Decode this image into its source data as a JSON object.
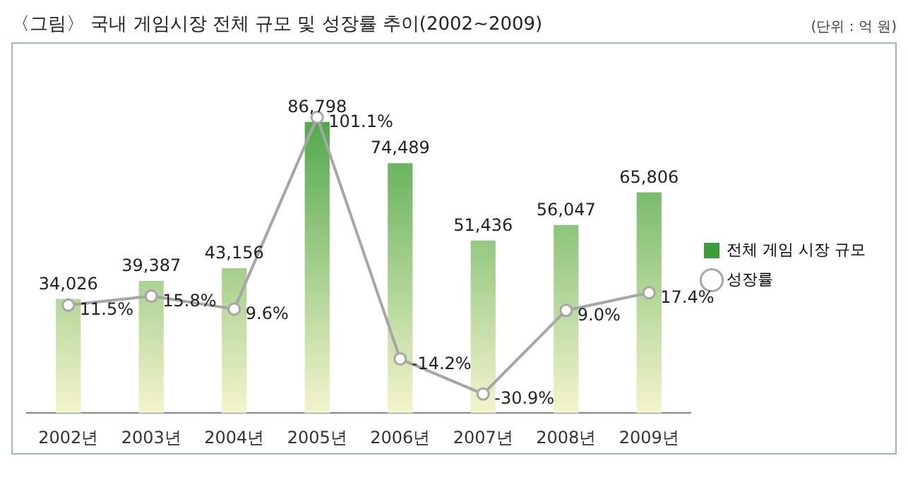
{
  "chart_data": {
    "type": "bar",
    "title": "〈그림〉 국내 게임시장 전체 규모 및 성장률 추이(2002~2009)",
    "annotations": [
      "(단위 : 억 원)"
    ],
    "categories": [
      "2002년",
      "2003년",
      "2004년",
      "2005년",
      "2006년",
      "2007년",
      "2008년",
      "2009년"
    ],
    "series": [
      {
        "name": "전체 게임 시장 규모",
        "color": "#3a9e3a",
        "values": [
          34026,
          39387,
          43156,
          86798,
          74489,
          51436,
          56047,
          65806
        ],
        "value_labels": [
          "34,026",
          "39,387",
          "43,156",
          "86,798",
          "74,489",
          "51,436",
          "56,047",
          "65,806"
        ]
      },
      {
        "name": "성장률",
        "type": "line",
        "axis": "y2",
        "color": "#a6a6a6",
        "marker": "circle",
        "values": [
          11.5,
          15.8,
          9.6,
          101.1,
          -14.2,
          -30.9,
          9.0,
          17.4
        ],
        "value_labels": [
          "11.5%",
          "15.8%",
          "9.6%",
          "101.1%",
          "-14.2%",
          "-30.9%",
          "9.0%",
          "17.4%"
        ]
      }
    ],
    "tick_labels": "x",
    "grid": false,
    "legend": "right"
  }
}
